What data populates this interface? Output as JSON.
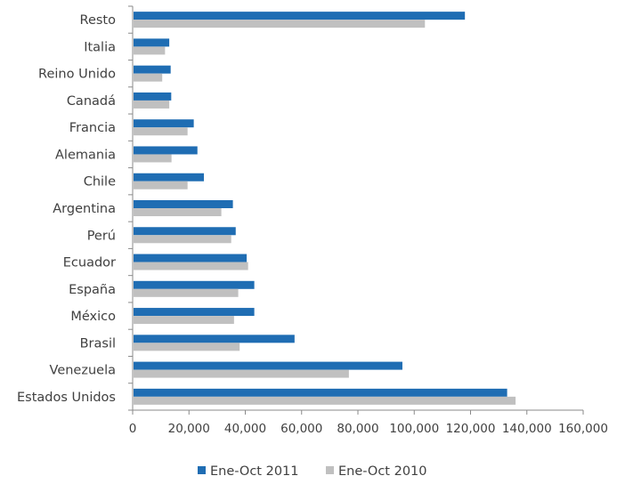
{
  "chart_data": {
    "type": "bar",
    "orientation": "horizontal",
    "categories": [
      "Resto",
      "Italia",
      "Reino Unido",
      "Canadá",
      "Francia",
      "Alemania",
      "Chile",
      "Argentina",
      "Perú",
      "Ecuador",
      "España",
      "México",
      "Brasil",
      "Venezuela",
      "Estados Unidos"
    ],
    "series": [
      {
        "name": "Ene-Oct 2011",
        "color": "#1f6db3",
        "values": [
          118000,
          13000,
          13500,
          13700,
          21700,
          23000,
          25300,
          35600,
          36600,
          40500,
          43200,
          43200,
          57500,
          95800,
          133000
        ]
      },
      {
        "name": "Ene-Oct 2010",
        "color": "#c0c0c0",
        "values": [
          103800,
          11500,
          10500,
          13000,
          19500,
          13800,
          19500,
          31500,
          35000,
          41000,
          37500,
          36000,
          38000,
          76800,
          136000
        ]
      }
    ],
    "xlim": [
      0,
      160000
    ],
    "xticks": [
      "0",
      "20,000",
      "40,000",
      "60,000",
      "80,000",
      "100,000",
      "120,000",
      "140,000",
      "160,000"
    ],
    "grid": false,
    "legend_position": "bottom"
  }
}
